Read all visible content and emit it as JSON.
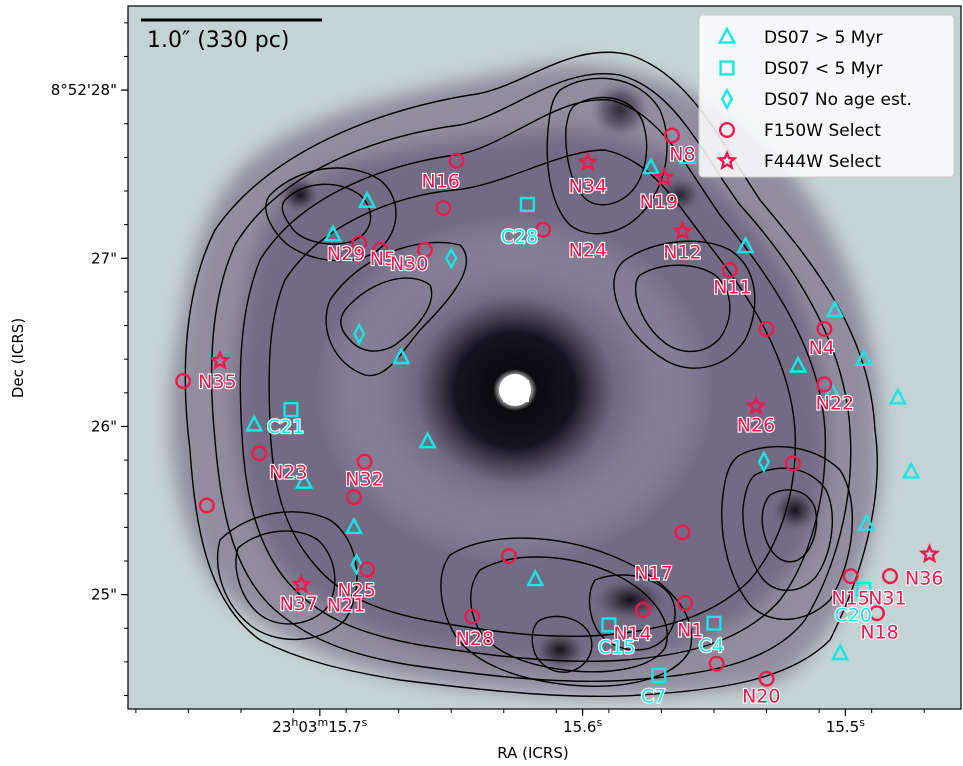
{
  "chart_data": {
    "type": "scatter",
    "title": "",
    "xlabel": "RA (ICRS)",
    "ylabel": "Dec (ICRS)",
    "x_ticks": [
      {
        "label": "23h03m15.7s",
        "ra_sec": 15.7
      },
      {
        "label": "15.6s",
        "ra_sec": 15.6
      },
      {
        "label": "15.5s",
        "ra_sec": 15.5
      }
    ],
    "y_ticks": [
      {
        "label": "8°52'28\"",
        "dec_arcsec": 28
      },
      {
        "label": "27\"",
        "dec_arcsec": 27
      },
      {
        "label": "26\"",
        "dec_arcsec": 26
      },
      {
        "label": "25\"",
        "dec_arcsec": 25
      }
    ],
    "xlim_ra_sec": [
      15.773,
      15.456
    ],
    "ylim_dec_arcsec": [
      24.32,
      28.5
    ],
    "scalebar": {
      "label": "1.0″ (330 pc)",
      "length_arcsec": 1.0
    },
    "legend": {
      "position": "top-right",
      "entries": [
        {
          "label": "DS07 > 5 Myr",
          "marker": "triangle",
          "color": "#18e6e6"
        },
        {
          "label": "DS07 < 5 Myr",
          "marker": "square",
          "color": "#18e6e6"
        },
        {
          "label": "DS07 No age est.",
          "marker": "diamond",
          "color": "#18e6e6"
        },
        {
          "label": "F150W Select",
          "marker": "circle",
          "color": "#f0194f"
        },
        {
          "label": "F444W Select",
          "marker": "star",
          "color": "#f0194f"
        }
      ]
    },
    "series": [
      {
        "name": "DS07 > 5 Myr",
        "marker": "triangle",
        "points": [
          {
            "ra": 15.695,
            "dec": 27.14
          },
          {
            "ra": 15.682,
            "dec": 27.34
          },
          {
            "ra": 15.669,
            "dec": 26.41
          },
          {
            "ra": 15.659,
            "dec": 25.91
          },
          {
            "ra": 15.725,
            "dec": 26.01
          },
          {
            "ra": 15.706,
            "dec": 25.67
          },
          {
            "ra": 15.687,
            "dec": 25.4
          },
          {
            "ra": 15.618,
            "dec": 25.09
          },
          {
            "ra": 15.574,
            "dec": 27.54
          },
          {
            "ra": 15.56,
            "dec": 27.6
          },
          {
            "ra": 15.538,
            "dec": 27.07
          },
          {
            "ra": 15.518,
            "dec": 26.36
          },
          {
            "ra": 15.504,
            "dec": 26.69
          },
          {
            "ra": 15.505,
            "dec": 26.2
          },
          {
            "ra": 15.493,
            "dec": 26.4
          },
          {
            "ra": 15.48,
            "dec": 26.17
          },
          {
            "ra": 15.475,
            "dec": 25.73
          },
          {
            "ra": 15.492,
            "dec": 25.42
          },
          {
            "ra": 15.502,
            "dec": 24.65
          }
        ]
      },
      {
        "name": "DS07 < 5 Myr",
        "marker": "square",
        "points": [
          {
            "ra": 15.621,
            "dec": 27.32
          },
          {
            "ra": 15.711,
            "dec": 26.1
          },
          {
            "ra": 15.59,
            "dec": 24.82
          },
          {
            "ra": 15.55,
            "dec": 24.83
          },
          {
            "ra": 15.571,
            "dec": 24.52
          },
          {
            "ra": 15.493,
            "dec": 25.03
          }
        ]
      },
      {
        "name": "DS07 No age est.",
        "marker": "diamond",
        "points": [
          {
            "ra": 15.65,
            "dec": 27.0
          },
          {
            "ra": 15.685,
            "dec": 26.55
          },
          {
            "ra": 15.531,
            "dec": 25.79
          },
          {
            "ra": 15.686,
            "dec": 25.18
          }
        ]
      },
      {
        "name": "F150W Select",
        "marker": "circle",
        "points": [
          {
            "ra": 15.566,
            "dec": 27.73
          },
          {
            "ra": 15.648,
            "dec": 27.58
          },
          {
            "ra": 15.653,
            "dec": 27.3
          },
          {
            "ra": 15.615,
            "dec": 27.17
          },
          {
            "ra": 15.685,
            "dec": 27.09
          },
          {
            "ra": 15.677,
            "dec": 27.05
          },
          {
            "ra": 15.66,
            "dec": 27.05
          },
          {
            "ra": 15.544,
            "dec": 26.93
          },
          {
            "ra": 15.53,
            "dec": 26.58
          },
          {
            "ra": 15.508,
            "dec": 26.58
          },
          {
            "ra": 15.508,
            "dec": 26.25
          },
          {
            "ra": 15.752,
            "dec": 26.27
          },
          {
            "ra": 15.723,
            "dec": 25.84
          },
          {
            "ra": 15.683,
            "dec": 25.79
          },
          {
            "ra": 15.687,
            "dec": 25.58
          },
          {
            "ra": 15.743,
            "dec": 25.53
          },
          {
            "ra": 15.52,
            "dec": 25.78
          },
          {
            "ra": 15.562,
            "dec": 25.37
          },
          {
            "ra": 15.628,
            "dec": 25.23
          },
          {
            "ra": 15.682,
            "dec": 25.15
          },
          {
            "ra": 15.498,
            "dec": 25.11
          },
          {
            "ra": 15.483,
            "dec": 25.11
          },
          {
            "ra": 15.488,
            "dec": 24.89
          },
          {
            "ra": 15.577,
            "dec": 24.91
          },
          {
            "ra": 15.561,
            "dec": 24.95
          },
          {
            "ra": 15.642,
            "dec": 24.87
          },
          {
            "ra": 15.549,
            "dec": 24.59
          },
          {
            "ra": 15.53,
            "dec": 24.5
          }
        ]
      },
      {
        "name": "F444W Select",
        "marker": "star",
        "points": [
          {
            "ra": 15.598,
            "dec": 27.57
          },
          {
            "ra": 15.569,
            "dec": 27.48
          },
          {
            "ra": 15.562,
            "dec": 27.16
          },
          {
            "ra": 15.738,
            "dec": 26.39
          },
          {
            "ra": 15.534,
            "dec": 26.12
          },
          {
            "ra": 15.468,
            "dec": 25.24
          },
          {
            "ra": 15.707,
            "dec": 25.06
          }
        ]
      }
    ],
    "labels": [
      {
        "text": "N8",
        "ra": 15.562,
        "dec": 27.58,
        "color": "red"
      },
      {
        "text": "N34",
        "ra": 15.598,
        "dec": 27.39,
        "color": "red"
      },
      {
        "text": "N16",
        "ra": 15.654,
        "dec": 27.42,
        "color": "red"
      },
      {
        "text": "N19",
        "ra": 15.571,
        "dec": 27.3,
        "color": "red"
      },
      {
        "text": "C28",
        "ra": 15.624,
        "dec": 27.09,
        "color": "cyan"
      },
      {
        "text": "N24",
        "ra": 15.598,
        "dec": 27.01,
        "color": "red"
      },
      {
        "text": "N12",
        "ra": 15.562,
        "dec": 27.0,
        "color": "red"
      },
      {
        "text": "N29",
        "ra": 15.69,
        "dec": 26.99,
        "color": "red"
      },
      {
        "text": "N5",
        "ra": 15.676,
        "dec": 26.96,
        "color": "red"
      },
      {
        "text": "N30",
        "ra": 15.666,
        "dec": 26.93,
        "color": "red"
      },
      {
        "text": "N11",
        "ra": 15.543,
        "dec": 26.79,
        "color": "red"
      },
      {
        "text": "N4",
        "ra": 15.509,
        "dec": 26.43,
        "color": "red"
      },
      {
        "text": "N35",
        "ra": 15.739,
        "dec": 26.23,
        "color": "red"
      },
      {
        "text": "N22",
        "ra": 15.504,
        "dec": 26.1,
        "color": "red"
      },
      {
        "text": "C21",
        "ra": 15.713,
        "dec": 25.96,
        "color": "cyan"
      },
      {
        "text": "N26",
        "ra": 15.534,
        "dec": 25.97,
        "color": "red"
      },
      {
        "text": "N23",
        "ra": 15.712,
        "dec": 25.69,
        "color": "red"
      },
      {
        "text": "N32",
        "ra": 15.683,
        "dec": 25.65,
        "color": "red"
      },
      {
        "text": "N17",
        "ra": 15.573,
        "dec": 25.09,
        "color": "red"
      },
      {
        "text": "N25",
        "ra": 15.686,
        "dec": 24.99,
        "color": "red"
      },
      {
        "text": "N36",
        "ra": 15.47,
        "dec": 25.06,
        "color": "red"
      },
      {
        "text": "N37",
        "ra": 15.708,
        "dec": 24.91,
        "color": "red"
      },
      {
        "text": "N21",
        "ra": 15.69,
        "dec": 24.9,
        "color": "red"
      },
      {
        "text": "N15",
        "ra": 15.498,
        "dec": 24.94,
        "color": "red"
      },
      {
        "text": "N31",
        "ra": 15.484,
        "dec": 24.94,
        "color": "red"
      },
      {
        "text": "C20",
        "ra": 15.497,
        "dec": 24.84,
        "color": "cyan"
      },
      {
        "text": "N1",
        "ra": 15.559,
        "dec": 24.75,
        "color": "red"
      },
      {
        "text": "N14",
        "ra": 15.581,
        "dec": 24.73,
        "color": "red"
      },
      {
        "text": "N18",
        "ra": 15.487,
        "dec": 24.74,
        "color": "red"
      },
      {
        "text": "N28",
        "ra": 15.641,
        "dec": 24.7,
        "color": "red"
      },
      {
        "text": "C15",
        "ra": 15.587,
        "dec": 24.65,
        "color": "cyan"
      },
      {
        "text": "C4",
        "ra": 15.551,
        "dec": 24.66,
        "color": "cyan"
      },
      {
        "text": "N20",
        "ra": 15.532,
        "dec": 24.36,
        "color": "red"
      },
      {
        "text": "C7",
        "ra": 15.573,
        "dec": 24.36,
        "color": "cyan"
      }
    ]
  }
}
